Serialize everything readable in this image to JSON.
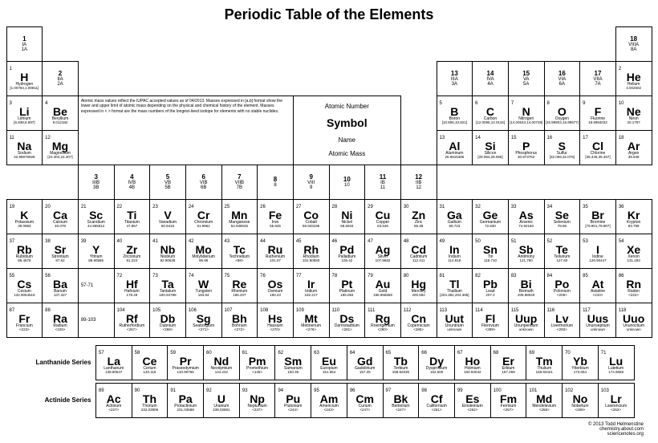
{
  "title": "Periodic Table of the Elements",
  "legend": {
    "atomic_number": "Atomic Number",
    "symbol": "Symbol",
    "name": "Name",
    "mass": "Atomic Mass"
  },
  "notes": "Atomic mass values reflect the IUPAC accepted values as of 04/2013. Masses expressed in [a,b] format show the lower and upper limit of atomic mass depending on the physical and chemical history of the element. Masses expressed in < > format are the mass numbers of the longest-lived isotope for elements with no stable nuclides.",
  "groups": [
    {
      "n": "1",
      "o": "IA",
      "o2": "1A"
    },
    {
      "n": "2",
      "o": "IIA",
      "o2": "2A"
    },
    {
      "n": "3",
      "o": "IIIB",
      "o2": "3B"
    },
    {
      "n": "4",
      "o": "IVB",
      "o2": "4B"
    },
    {
      "n": "5",
      "o": "VB",
      "o2": "5B"
    },
    {
      "n": "6",
      "o": "VIB",
      "o2": "6B"
    },
    {
      "n": "7",
      "o": "VIIB",
      "o2": "7B"
    },
    {
      "n": "8",
      "o": "",
      "o2": "8"
    },
    {
      "n": "9",
      "o": "VIII",
      "o2": "9"
    },
    {
      "n": "10",
      "o": "",
      "o2": "10"
    },
    {
      "n": "11",
      "o": "IB",
      "o2": "11"
    },
    {
      "n": "12",
      "o": "IIB",
      "o2": "12"
    },
    {
      "n": "13",
      "o": "IIIA",
      "o2": "3A"
    },
    {
      "n": "14",
      "o": "IVA",
      "o2": "4A"
    },
    {
      "n": "15",
      "o": "VA",
      "o2": "5A"
    },
    {
      "n": "16",
      "o": "VIA",
      "o2": "6A"
    },
    {
      "n": "17",
      "o": "VIIA",
      "o2": "7A"
    },
    {
      "n": "18",
      "o": "VIIIA",
      "o2": "8A"
    }
  ],
  "elements": [
    {
      "n": 1,
      "s": "H",
      "name": "Hydrogen",
      "m": "[1.00784,1.00811]"
    },
    {
      "n": 2,
      "s": "He",
      "name": "Helium",
      "m": "4.002602"
    },
    {
      "n": 3,
      "s": "Li",
      "name": "Lithium",
      "m": "[6.938,6.997]"
    },
    {
      "n": 4,
      "s": "Be",
      "name": "Beryllium",
      "m": "9.012182"
    },
    {
      "n": 5,
      "s": "B",
      "name": "Boron",
      "m": "[10.806,10.821]"
    },
    {
      "n": 6,
      "s": "C",
      "name": "Carbon",
      "m": "[12.0096,12.0116]"
    },
    {
      "n": 7,
      "s": "N",
      "name": "Nitrogen",
      "m": "[14.00643,14.00728]"
    },
    {
      "n": 8,
      "s": "O",
      "name": "Oxygen",
      "m": "[15.99903,15.99977]"
    },
    {
      "n": 9,
      "s": "F",
      "name": "Fluorine",
      "m": "18.9984032"
    },
    {
      "n": 10,
      "s": "Ne",
      "name": "Neon",
      "m": "20.1797"
    },
    {
      "n": 11,
      "s": "Na",
      "name": "Sodium",
      "m": "22.98976928"
    },
    {
      "n": 12,
      "s": "Mg",
      "name": "Magnesium",
      "m": "[24.304,24.307]"
    },
    {
      "n": 13,
      "s": "Al",
      "name": "Aluminum",
      "m": "26.9815386"
    },
    {
      "n": 14,
      "s": "Si",
      "name": "Silicon",
      "m": "[28.084,28.086]"
    },
    {
      "n": 15,
      "s": "P",
      "name": "Phosphorus",
      "m": "30.973762"
    },
    {
      "n": 16,
      "s": "S",
      "name": "Sulfur",
      "m": "[32.059,32.076]"
    },
    {
      "n": 17,
      "s": "Cl",
      "name": "Chlorine",
      "m": "[35.446,35.457]"
    },
    {
      "n": 18,
      "s": "Ar",
      "name": "Argon",
      "m": "39.948"
    },
    {
      "n": 19,
      "s": "K",
      "name": "Potassium",
      "m": "39.0983"
    },
    {
      "n": 20,
      "s": "Ca",
      "name": "Calcium",
      "m": "40.078"
    },
    {
      "n": 21,
      "s": "Sc",
      "name": "Scandium",
      "m": "44.955912"
    },
    {
      "n": 22,
      "s": "Ti",
      "name": "Titanium",
      "m": "47.867"
    },
    {
      "n": 23,
      "s": "V",
      "name": "Vanadium",
      "m": "50.9415"
    },
    {
      "n": 24,
      "s": "Cr",
      "name": "Chromium",
      "m": "51.9961"
    },
    {
      "n": 25,
      "s": "Mn",
      "name": "Manganese",
      "m": "54.938045"
    },
    {
      "n": 26,
      "s": "Fe",
      "name": "Iron",
      "m": "55.845"
    },
    {
      "n": 27,
      "s": "Co",
      "name": "Cobalt",
      "m": "58.933195"
    },
    {
      "n": 28,
      "s": "Ni",
      "name": "Nickel",
      "m": "58.6934"
    },
    {
      "n": 29,
      "s": "Cu",
      "name": "Copper",
      "m": "63.546"
    },
    {
      "n": 30,
      "s": "Zn",
      "name": "Zinc",
      "m": "65.38"
    },
    {
      "n": 31,
      "s": "Ga",
      "name": "Gallium",
      "m": "69.723"
    },
    {
      "n": 32,
      "s": "Ge",
      "name": "Germanium",
      "m": "72.630"
    },
    {
      "n": 33,
      "s": "As",
      "name": "Arsenic",
      "m": "74.92160"
    },
    {
      "n": 34,
      "s": "Se",
      "name": "Selenium",
      "m": "78.96"
    },
    {
      "n": 35,
      "s": "Br",
      "name": "Bromine",
      "m": "[79.901,79.907]"
    },
    {
      "n": 36,
      "s": "Kr",
      "name": "Krypton",
      "m": "83.798"
    },
    {
      "n": 37,
      "s": "Rb",
      "name": "Rubidium",
      "m": "85.4678"
    },
    {
      "n": 38,
      "s": "Sr",
      "name": "Strontium",
      "m": "87.62"
    },
    {
      "n": 39,
      "s": "Y",
      "name": "Yttrium",
      "m": "88.90585"
    },
    {
      "n": 40,
      "s": "Zr",
      "name": "Zirconium",
      "m": "91.224"
    },
    {
      "n": 41,
      "s": "Nb",
      "name": "Niobium",
      "m": "92.90638"
    },
    {
      "n": 42,
      "s": "Mo",
      "name": "Molybdenum",
      "m": "95.96"
    },
    {
      "n": 43,
      "s": "Tc",
      "name": "Technetium",
      "m": "<98>"
    },
    {
      "n": 44,
      "s": "Ru",
      "name": "Ruthenium",
      "m": "101.07"
    },
    {
      "n": 45,
      "s": "Rh",
      "name": "Rhodium",
      "m": "102.90550"
    },
    {
      "n": 46,
      "s": "Pd",
      "name": "Palladium",
      "m": "106.42"
    },
    {
      "n": 47,
      "s": "Ag",
      "name": "Silver",
      "m": "107.8682"
    },
    {
      "n": 48,
      "s": "Cd",
      "name": "Cadmium",
      "m": "112.411"
    },
    {
      "n": 49,
      "s": "In",
      "name": "Indium",
      "m": "114.818"
    },
    {
      "n": 50,
      "s": "Sn",
      "name": "Tin",
      "m": "118.710"
    },
    {
      "n": 51,
      "s": "Sb",
      "name": "Antimony",
      "m": "121.760"
    },
    {
      "n": 52,
      "s": "Te",
      "name": "Tellurium",
      "m": "127.60"
    },
    {
      "n": 53,
      "s": "I",
      "name": "Iodine",
      "m": "126.90447"
    },
    {
      "n": 54,
      "s": "Xe",
      "name": "Xenon",
      "m": "131.293"
    },
    {
      "n": 55,
      "s": "Cs",
      "name": "Cesium",
      "m": "132.9054519"
    },
    {
      "n": 56,
      "s": "Ba",
      "name": "Barium",
      "m": "137.327"
    },
    {
      "n": "57-71",
      "s": "",
      "name": "",
      "m": ""
    },
    {
      "n": 72,
      "s": "Hf",
      "name": "Hafnium",
      "m": "178.49"
    },
    {
      "n": 73,
      "s": "Ta",
      "name": "Tantalum",
      "m": "180.94788"
    },
    {
      "n": 74,
      "s": "W",
      "name": "Tungsten",
      "m": "183.84"
    },
    {
      "n": 75,
      "s": "Re",
      "name": "Rhenium",
      "m": "186.207"
    },
    {
      "n": 76,
      "s": "Os",
      "name": "Osmium",
      "m": "190.23"
    },
    {
      "n": 77,
      "s": "Ir",
      "name": "Iridium",
      "m": "192.217"
    },
    {
      "n": 78,
      "s": "Pt",
      "name": "Platinum",
      "m": "195.084"
    },
    {
      "n": 79,
      "s": "Au",
      "name": "Gold",
      "m": "196.966569"
    },
    {
      "n": 80,
      "s": "Hg",
      "name": "Mercury",
      "m": "200.592"
    },
    {
      "n": 81,
      "s": "Tl",
      "name": "Thallium",
      "m": "[204.382,204.385]"
    },
    {
      "n": 82,
      "s": "Pb",
      "name": "Lead",
      "m": "207.2"
    },
    {
      "n": 83,
      "s": "Bi",
      "name": "Bismuth",
      "m": "208.98040"
    },
    {
      "n": 84,
      "s": "Po",
      "name": "Polonium",
      "m": "<209>"
    },
    {
      "n": 85,
      "s": "At",
      "name": "Astatine",
      "m": "<210>"
    },
    {
      "n": 86,
      "s": "Rn",
      "name": "Radon",
      "m": "<222>"
    },
    {
      "n": 87,
      "s": "Fr",
      "name": "Francium",
      "m": "<223>"
    },
    {
      "n": 88,
      "s": "Ra",
      "name": "Radium",
      "m": "<226>"
    },
    {
      "n": "89-103",
      "s": "",
      "name": "",
      "m": ""
    },
    {
      "n": 104,
      "s": "Rf",
      "name": "Rutherfordium",
      "m": "<267>"
    },
    {
      "n": 105,
      "s": "Db",
      "name": "Dubnium",
      "m": "<268>"
    },
    {
      "n": 106,
      "s": "Sg",
      "name": "Seaborgium",
      "m": "<271>"
    },
    {
      "n": 107,
      "s": "Bh",
      "name": "Bohrium",
      "m": "<272>"
    },
    {
      "n": 108,
      "s": "Hs",
      "name": "Hassium",
      "m": "<270>"
    },
    {
      "n": 109,
      "s": "Mt",
      "name": "Meitnerium",
      "m": "<276>"
    },
    {
      "n": 110,
      "s": "Ds",
      "name": "Darmstadtium",
      "m": "<281>"
    },
    {
      "n": 111,
      "s": "Rg",
      "name": "Roentgenium",
      "m": "<280>"
    },
    {
      "n": 112,
      "s": "Cn",
      "name": "Copernicium",
      "m": "<285>"
    },
    {
      "n": 113,
      "s": "Uut",
      "name": "Ununtrium",
      "m": "unknown"
    },
    {
      "n": 114,
      "s": "Fl",
      "name": "Flerovium",
      "m": "<289>"
    },
    {
      "n": 115,
      "s": "Uup",
      "name": "Ununpentium",
      "m": "unknown"
    },
    {
      "n": 116,
      "s": "Lv",
      "name": "Livermorium",
      "m": "<293>"
    },
    {
      "n": 117,
      "s": "Uus",
      "name": "Ununseptium",
      "m": "unknown"
    },
    {
      "n": 118,
      "s": "Uuo",
      "name": "Ununoctium",
      "m": "unknown"
    }
  ],
  "lanthanides": [
    {
      "n": 57,
      "s": "La",
      "name": "Lanthanum",
      "m": "138.90547"
    },
    {
      "n": 58,
      "s": "Ce",
      "name": "Cerium",
      "m": "140.116"
    },
    {
      "n": 59,
      "s": "Pr",
      "name": "Praseodymium",
      "m": "140.90765"
    },
    {
      "n": 60,
      "s": "Nd",
      "name": "Neodymium",
      "m": "144.242"
    },
    {
      "n": 61,
      "s": "Pm",
      "name": "Promethium",
      "m": "<145>"
    },
    {
      "n": 62,
      "s": "Sm",
      "name": "Samarium",
      "m": "150.36"
    },
    {
      "n": 63,
      "s": "Eu",
      "name": "Europium",
      "m": "151.964"
    },
    {
      "n": 64,
      "s": "Gd",
      "name": "Gadolinium",
      "m": "157.25"
    },
    {
      "n": 65,
      "s": "Tb",
      "name": "Terbium",
      "m": "158.92535"
    },
    {
      "n": 66,
      "s": "Dy",
      "name": "Dysprosium",
      "m": "162.500"
    },
    {
      "n": 67,
      "s": "Ho",
      "name": "Holmium",
      "m": "164.93032"
    },
    {
      "n": 68,
      "s": "Er",
      "name": "Erbium",
      "m": "167.259"
    },
    {
      "n": 69,
      "s": "Tm",
      "name": "Thulium",
      "m": "168.93421"
    },
    {
      "n": 70,
      "s": "Yb",
      "name": "Ytterbium",
      "m": "173.054"
    },
    {
      "n": 71,
      "s": "Lu",
      "name": "Lutetium",
      "m": "174.9668"
    }
  ],
  "actinides": [
    {
      "n": 89,
      "s": "Ac",
      "name": "Actinium",
      "m": "<227>"
    },
    {
      "n": 90,
      "s": "Th",
      "name": "Thorium",
      "m": "232.03806"
    },
    {
      "n": 91,
      "s": "Pa",
      "name": "Protactinium",
      "m": "231.03588"
    },
    {
      "n": 92,
      "s": "U",
      "name": "Uranium",
      "m": "238.02891"
    },
    {
      "n": 93,
      "s": "Np",
      "name": "Neptunium",
      "m": "<237>"
    },
    {
      "n": 94,
      "s": "Pu",
      "name": "Plutonium",
      "m": "<244>"
    },
    {
      "n": 95,
      "s": "Am",
      "name": "Americium",
      "m": "<243>"
    },
    {
      "n": 96,
      "s": "Cm",
      "name": "Curium",
      "m": "<247>"
    },
    {
      "n": 97,
      "s": "Bk",
      "name": "Berkelium",
      "m": "<247>"
    },
    {
      "n": 98,
      "s": "Cf",
      "name": "Californium",
      "m": "<251>"
    },
    {
      "n": 99,
      "s": "Es",
      "name": "Einsteinium",
      "m": "<252>"
    },
    {
      "n": 100,
      "s": "Fm",
      "name": "Fermium",
      "m": "<257>"
    },
    {
      "n": 101,
      "s": "Md",
      "name": "Mendelevium",
      "m": "<258>"
    },
    {
      "n": 102,
      "s": "No",
      "name": "Nobelium",
      "m": "<259>"
    },
    {
      "n": 103,
      "s": "Lr",
      "name": "Lawrencium",
      "m": "<262>"
    }
  ],
  "series_labels": {
    "lan": "Lanthanide Series",
    "act": "Actinide Series"
  },
  "credit": "© 2013 Todd Helmenstine\nchemistry.about.com\nsciencenotes.org",
  "colors": {
    "border": "#000000",
    "background": "#ffffff",
    "text": "#000000"
  }
}
